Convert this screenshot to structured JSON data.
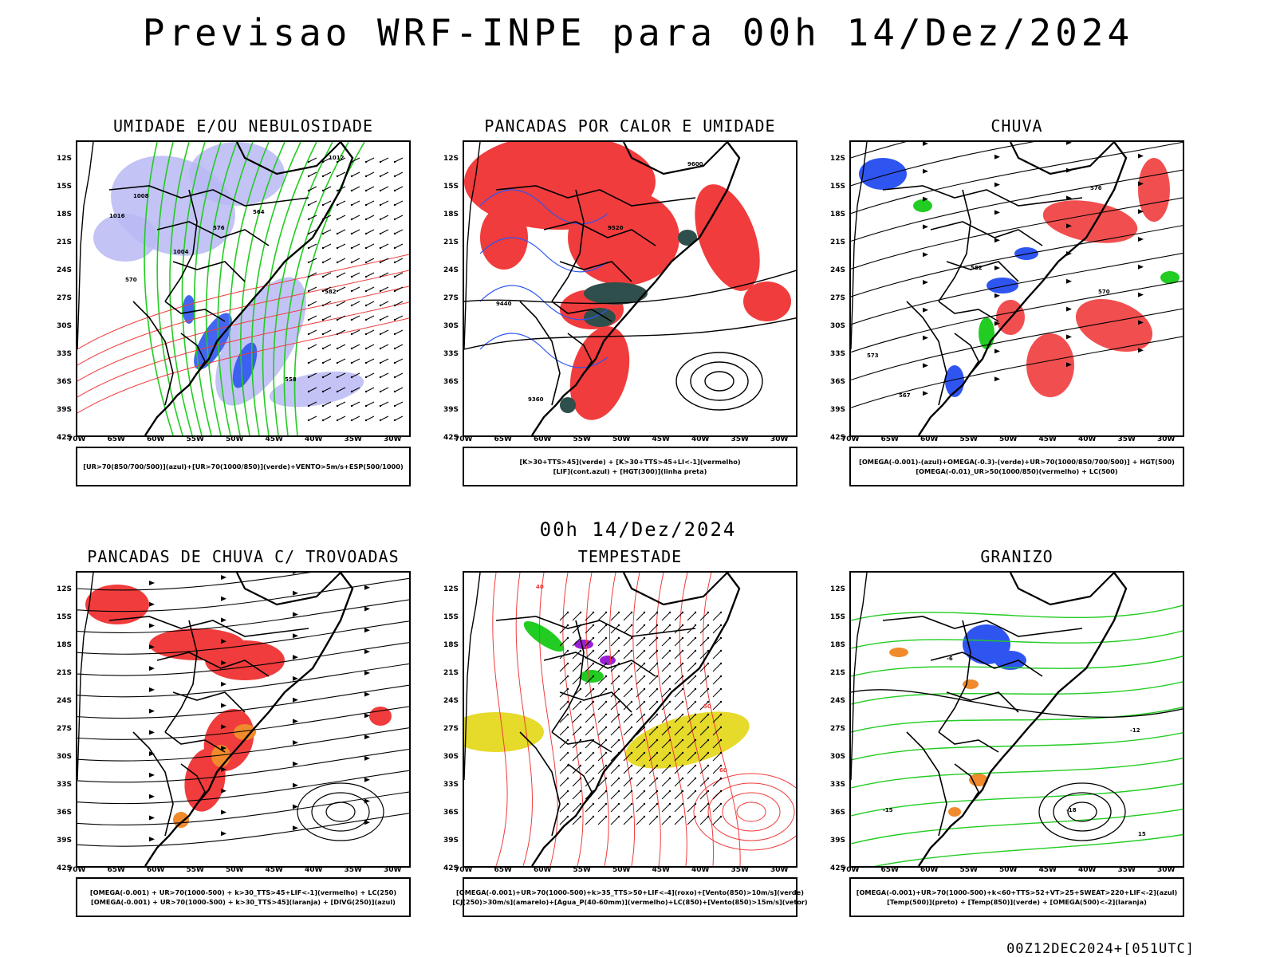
{
  "header": {
    "title": "Previsao WRF-INPE  para 00h 14/Dez/2024"
  },
  "mid_date": "00h 14/Dez/2024",
  "footer": {
    "run_info": "00Z12DEC2024+[051UTC]"
  },
  "axes": {
    "lat_labels": [
      "12S",
      "15S",
      "18S",
      "21S",
      "24S",
      "27S",
      "30S",
      "33S",
      "36S",
      "39S",
      "42S"
    ],
    "lon_labels": [
      "70W",
      "65W",
      "60W",
      "55W",
      "50W",
      "45W",
      "40W",
      "35W",
      "30W"
    ]
  },
  "colors": {
    "blue": "#2f55f0",
    "light_blue": "#b9b9f5",
    "green": "#22cc22",
    "red": "#f03c3c",
    "dark_teal": "#2f4f4c",
    "orange": "#f08a2c",
    "yellow": "#e6da2a",
    "purple": "#9b1fd6"
  },
  "panels": [
    {
      "title": "UMIDADE E/OU NEBULOSIDADE",
      "legend": [
        "[UR>70(850/700/500)](azul)+[UR>70(1000/850)](verde)+VENTO>5m/s+ESP(500/1000)"
      ],
      "contour_labels": [
        "1012",
        "1008",
        "1016",
        "1004",
        "570",
        "576",
        "564",
        "582",
        "558"
      ]
    },
    {
      "title": "PANCADAS POR CALOR E UMIDADE",
      "legend": [
        "[K>30+TTS>45](verde) + [K>30+TTS>45+LI<-1](vermelho)",
        "[LIF](cont.azul) + [HGT(300)](linha preta)"
      ],
      "contour_labels": [
        "9600",
        "9520",
        "9440",
        "9360"
      ]
    },
    {
      "title": "CHUVA",
      "legend": [
        "[OMEGA(-0.001)-(azul)+OMEGA(-0.3)-(verde)+UR>70(1000/850/700/500)] + HGT(500)",
        "[OMEGA(-0.01)_UR>50(1000/850)(vermelho) + LC(500)"
      ],
      "contour_labels": [
        "576",
        "570",
        "573",
        "567",
        "582"
      ]
    },
    {
      "title": "PANCADAS DE CHUVA C/ TROVOADAS",
      "legend": [
        "[OMEGA(-0.001) + UR>70(1000-500) + k>30_TTS>45+LIF<-1](vermelho) + LC(250)",
        "[OMEGA(-0.001) + UR>70(1000-500) + k>30_TTS>45](laranja) + [DIVG(250)](azul)"
      ],
      "contour_labels": []
    },
    {
      "title": "TEMPESTADE",
      "legend": [
        "[OMEGA(-0.001)+UR>70(1000-500)+k>35_TTS>50+LIF<-4](roxo)+[Vento(850)>10m/s](verde)",
        "[CJ(250)>30m/s](amarelo)+[Agua_P(40-60mm)](vermelho)+LC(850)+[Vento(850)>15m/s](vetor)"
      ],
      "contour_labels": [
        "40",
        "50",
        "60"
      ]
    },
    {
      "title": "GRANIZO",
      "legend": [
        "[OMEGA(-0.001)+UR>70(1000-500)+k<60+TTS>52+VT>25+SWEAT>220+LIF<-2](azul)",
        "[Temp(500)](preto) + [Temp(850)](verde) + [OMEGA(500)<-2](laranja)"
      ],
      "contour_labels": [
        "-12",
        "-6",
        "-18",
        "-15",
        "15"
      ]
    }
  ]
}
